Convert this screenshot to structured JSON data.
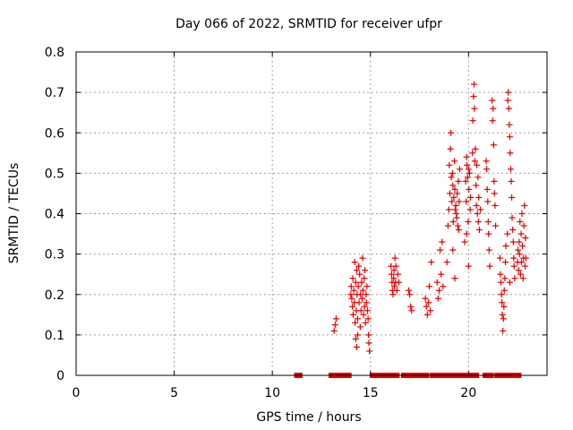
{
  "chart_data": {
    "type": "scatter",
    "title": "Day 066 of 2022, SRMTID for receiver ufpr",
    "xlabel": "GPS time / hours",
    "ylabel": "SRMTID / TECUs",
    "xlim": [
      0,
      24
    ],
    "ylim": [
      0,
      0.8
    ],
    "xticks": [
      "0",
      "5",
      "10",
      "15",
      "20"
    ],
    "yticks": [
      "0",
      "0.1",
      "0.2",
      "0.3",
      "0.4",
      "0.5",
      "0.6",
      "0.7",
      "0.8"
    ],
    "grid": true,
    "color": "#e00000",
    "series": [
      {
        "name": "SRMTID",
        "marker": "plus",
        "points": [
          [
            13.15,
            0.11
          ],
          [
            13.2,
            0.125
          ],
          [
            13.25,
            0.14
          ],
          [
            14.0,
            0.2
          ],
          [
            14.02,
            0.22
          ],
          [
            14.05,
            0.19
          ],
          [
            14.08,
            0.17
          ],
          [
            14.1,
            0.24
          ],
          [
            14.12,
            0.15
          ],
          [
            14.15,
            0.21
          ],
          [
            14.18,
            0.18
          ],
          [
            14.2,
            0.28
          ],
          [
            14.22,
            0.13
          ],
          [
            14.25,
            0.23
          ],
          [
            14.28,
            0.16
          ],
          [
            14.3,
            0.26
          ],
          [
            14.32,
            0.2
          ],
          [
            14.35,
            0.14
          ],
          [
            14.38,
            0.22
          ],
          [
            14.4,
            0.27
          ],
          [
            14.42,
            0.18
          ],
          [
            14.45,
            0.25
          ],
          [
            14.48,
            0.12
          ],
          [
            14.5,
            0.2
          ],
          [
            14.52,
            0.16
          ],
          [
            14.55,
            0.23
          ],
          [
            14.58,
            0.19
          ],
          [
            14.6,
            0.29
          ],
          [
            14.62,
            0.21
          ],
          [
            14.65,
            0.15
          ],
          [
            14.68,
            0.24
          ],
          [
            14.7,
            0.17
          ],
          [
            14.72,
            0.26
          ],
          [
            14.75,
            0.13
          ],
          [
            14.78,
            0.2
          ],
          [
            14.8,
            0.18
          ],
          [
            14.82,
            0.22
          ],
          [
            14.85,
            0.16
          ],
          [
            14.88,
            0.14
          ],
          [
            14.9,
            0.1
          ],
          [
            14.92,
            0.08
          ],
          [
            14.95,
            0.06
          ],
          [
            14.3,
            0.07
          ],
          [
            14.35,
            0.1
          ],
          [
            14.25,
            0.09
          ],
          [
            16.05,
            0.27
          ],
          [
            16.08,
            0.25
          ],
          [
            16.1,
            0.23
          ],
          [
            16.12,
            0.21
          ],
          [
            16.15,
            0.2
          ],
          [
            16.18,
            0.24
          ],
          [
            16.2,
            0.26
          ],
          [
            16.22,
            0.22
          ],
          [
            16.25,
            0.29
          ],
          [
            16.28,
            0.23
          ],
          [
            16.3,
            0.27
          ],
          [
            16.35,
            0.21
          ],
          [
            16.4,
            0.25
          ],
          [
            16.45,
            0.23
          ],
          [
            16.95,
            0.21
          ],
          [
            17.0,
            0.2
          ],
          [
            17.05,
            0.17
          ],
          [
            17.1,
            0.16
          ],
          [
            17.8,
            0.19
          ],
          [
            17.85,
            0.17
          ],
          [
            17.9,
            0.15
          ],
          [
            17.95,
            0.18
          ],
          [
            18.0,
            0.22
          ],
          [
            18.05,
            0.16
          ],
          [
            18.1,
            0.28
          ],
          [
            18.4,
            0.23
          ],
          [
            18.45,
            0.19
          ],
          [
            18.5,
            0.21
          ],
          [
            18.55,
            0.31
          ],
          [
            18.6,
            0.25
          ],
          [
            18.65,
            0.33
          ],
          [
            18.7,
            0.22
          ],
          [
            18.9,
            0.28
          ],
          [
            18.95,
            0.37
          ],
          [
            19.0,
            0.41
          ],
          [
            19.02,
            0.52
          ],
          [
            19.05,
            0.45
          ],
          [
            19.08,
            0.56
          ],
          [
            19.1,
            0.6
          ],
          [
            19.12,
            0.49
          ],
          [
            19.15,
            0.43
          ],
          [
            19.18,
            0.5
          ],
          [
            19.2,
            0.47
          ],
          [
            19.22,
            0.38
          ],
          [
            19.25,
            0.44
          ],
          [
            19.28,
            0.53
          ],
          [
            19.3,
            0.46
          ],
          [
            19.32,
            0.41
          ],
          [
            19.35,
            0.42
          ],
          [
            19.38,
            0.4
          ],
          [
            19.4,
            0.39
          ],
          [
            19.42,
            0.45
          ],
          [
            19.45,
            0.37
          ],
          [
            19.48,
            0.48
          ],
          [
            19.5,
            0.36
          ],
          [
            19.52,
            0.43
          ],
          [
            19.55,
            0.51
          ],
          [
            19.3,
            0.24
          ],
          [
            19.2,
            0.31
          ],
          [
            19.8,
            0.33
          ],
          [
            19.85,
            0.48
          ],
          [
            19.88,
            0.43
          ],
          [
            19.9,
            0.54
          ],
          [
            19.92,
            0.52
          ],
          [
            19.95,
            0.49
          ],
          [
            19.98,
            0.38
          ],
          [
            20.0,
            0.51
          ],
          [
            20.02,
            0.46
          ],
          [
            20.05,
            0.5
          ],
          [
            20.08,
            0.41
          ],
          [
            20.1,
            0.44
          ],
          [
            20.0,
            0.27
          ],
          [
            19.9,
            0.35
          ],
          [
            20.2,
            0.55
          ],
          [
            20.22,
            0.63
          ],
          [
            20.25,
            0.69
          ],
          [
            20.28,
            0.72
          ],
          [
            20.3,
            0.66
          ],
          [
            20.32,
            0.53
          ],
          [
            20.35,
            0.56
          ],
          [
            20.38,
            0.47
          ],
          [
            20.4,
            0.42
          ],
          [
            20.42,
            0.52
          ],
          [
            20.45,
            0.4
          ],
          [
            20.48,
            0.49
          ],
          [
            20.5,
            0.38
          ],
          [
            20.52,
            0.44
          ],
          [
            20.55,
            0.36
          ],
          [
            20.6,
            0.41
          ],
          [
            20.9,
            0.53
          ],
          [
            20.92,
            0.51
          ],
          [
            20.95,
            0.46
          ],
          [
            20.98,
            0.43
          ],
          [
            21.0,
            0.38
          ],
          [
            21.02,
            0.35
          ],
          [
            21.05,
            0.31
          ],
          [
            21.08,
            0.27
          ],
          [
            21.2,
            0.68
          ],
          [
            21.22,
            0.63
          ],
          [
            21.25,
            0.66
          ],
          [
            21.28,
            0.57
          ],
          [
            21.3,
            0.48
          ],
          [
            21.32,
            0.45
          ],
          [
            21.35,
            0.42
          ],
          [
            21.38,
            0.37
          ],
          [
            21.6,
            0.29
          ],
          [
            21.62,
            0.25
          ],
          [
            21.65,
            0.23
          ],
          [
            21.68,
            0.2
          ],
          [
            21.7,
            0.18
          ],
          [
            21.72,
            0.15
          ],
          [
            21.75,
            0.11
          ],
          [
            21.78,
            0.14
          ],
          [
            21.8,
            0.17
          ],
          [
            21.82,
            0.21
          ],
          [
            21.85,
            0.24
          ],
          [
            21.88,
            0.28
          ],
          [
            21.9,
            0.32
          ],
          [
            22.0,
            0.68
          ],
          [
            22.02,
            0.7
          ],
          [
            22.05,
            0.66
          ],
          [
            22.08,
            0.62
          ],
          [
            22.1,
            0.59
          ],
          [
            22.12,
            0.55
          ],
          [
            22.15,
            0.51
          ],
          [
            22.18,
            0.48
          ],
          [
            22.2,
            0.44
          ],
          [
            22.22,
            0.39
          ],
          [
            22.25,
            0.36
          ],
          [
            22.28,
            0.33
          ],
          [
            22.3,
            0.29
          ],
          [
            22.32,
            0.27
          ],
          [
            22.35,
            0.24
          ],
          [
            21.98,
            0.35
          ],
          [
            22.1,
            0.23
          ],
          [
            22.5,
            0.28
          ],
          [
            22.52,
            0.31
          ],
          [
            22.55,
            0.26
          ],
          [
            22.58,
            0.33
          ],
          [
            22.6,
            0.3
          ],
          [
            22.62,
            0.38
          ],
          [
            22.65,
            0.25
          ],
          [
            22.68,
            0.35
          ],
          [
            22.7,
            0.28
          ],
          [
            22.72,
            0.4
          ],
          [
            22.75,
            0.32
          ],
          [
            22.78,
            0.24
          ],
          [
            22.8,
            0.29
          ],
          [
            22.82,
            0.37
          ],
          [
            22.85,
            0.42
          ],
          [
            22.88,
            0.27
          ],
          [
            22.9,
            0.34
          ],
          [
            22.92,
            0.29
          ]
        ]
      },
      {
        "name": "SRMTID zero",
        "marker": "square",
        "points": [
          [
            11.25,
            0
          ],
          [
            11.4,
            0
          ],
          [
            13.0,
            0
          ],
          [
            13.1,
            0
          ],
          [
            13.2,
            0
          ],
          [
            13.3,
            0
          ],
          [
            13.45,
            0
          ],
          [
            13.6,
            0
          ],
          [
            13.75,
            0
          ],
          [
            13.9,
            0
          ],
          [
            15.1,
            0
          ],
          [
            15.25,
            0
          ],
          [
            15.4,
            0
          ],
          [
            15.55,
            0
          ],
          [
            15.7,
            0
          ],
          [
            15.85,
            0
          ],
          [
            16.05,
            0
          ],
          [
            16.2,
            0
          ],
          [
            16.35,
            0
          ],
          [
            16.7,
            0
          ],
          [
            16.85,
            0
          ],
          [
            17.0,
            0
          ],
          [
            17.2,
            0
          ],
          [
            17.35,
            0
          ],
          [
            17.55,
            0
          ],
          [
            17.7,
            0
          ],
          [
            17.85,
            0
          ],
          [
            18.15,
            0
          ],
          [
            18.3,
            0
          ],
          [
            18.5,
            0
          ],
          [
            18.65,
            0
          ],
          [
            18.85,
            0
          ],
          [
            19.0,
            0
          ],
          [
            19.2,
            0
          ],
          [
            19.4,
            0
          ],
          [
            19.55,
            0
          ],
          [
            19.8,
            0
          ],
          [
            20.0,
            0
          ],
          [
            20.2,
            0
          ],
          [
            20.4,
            0
          ],
          [
            20.85,
            0
          ],
          [
            21.0,
            0
          ],
          [
            21.15,
            0
          ],
          [
            21.45,
            0
          ],
          [
            21.6,
            0
          ],
          [
            21.75,
            0
          ],
          [
            21.95,
            0
          ],
          [
            22.1,
            0
          ],
          [
            22.25,
            0
          ],
          [
            22.4,
            0
          ],
          [
            22.55,
            0
          ]
        ]
      }
    ]
  }
}
